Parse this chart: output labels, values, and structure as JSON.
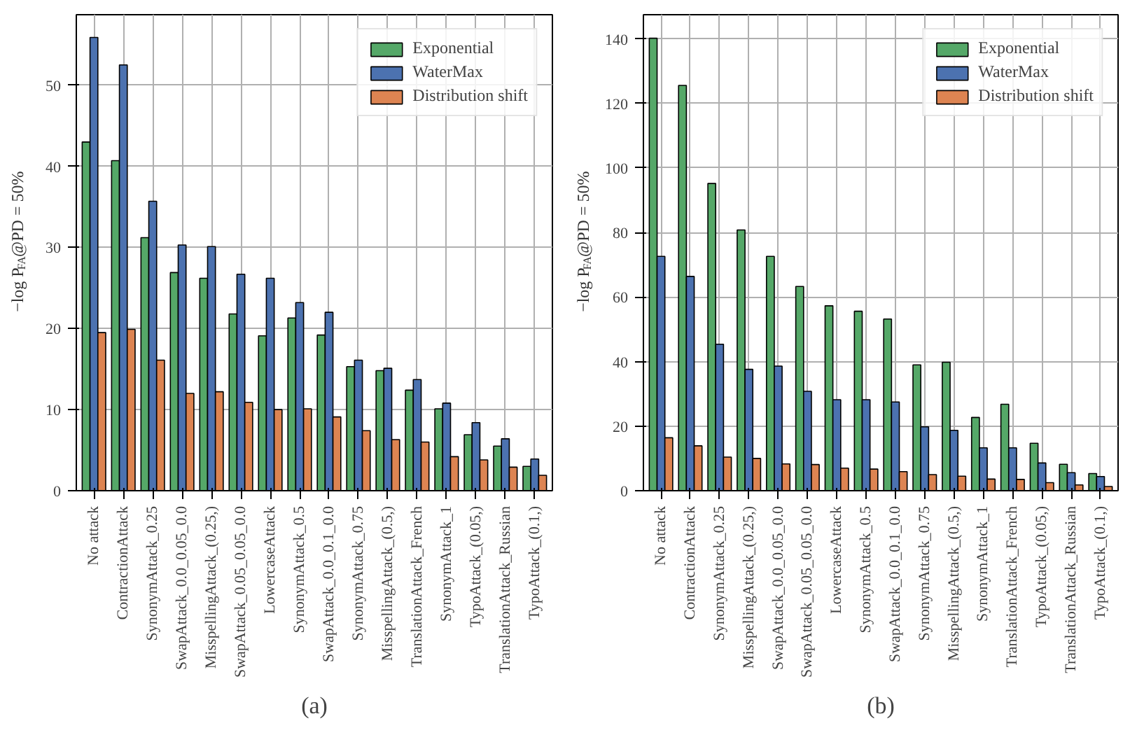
{
  "chart_data": [
    {
      "type": "bar",
      "annotations": [
        "(a)"
      ],
      "ylabel": "−log P$_{FA}$@PD = 50%",
      "categories": [
        "No attack",
        "ContractionAttack",
        "SynonymAttack_0.25",
        "SwapAttack_0.0_0.05_0.0",
        "MisspellingAttack_(0.25,)",
        "SwapAttack_0.05_0.05_0.0",
        "LowercaseAttack",
        "SynonymAttack_0.5",
        "SwapAttack_0.0_0.1_0.0",
        "SynonymAttack_0.75",
        "MisspellingAttack_(0.5,)",
        "TranslationAttack_French",
        "SynonymAttack_1",
        "TypoAttack_(0.05,)",
        "TranslationAttack_Russian",
        "TypoAttack_(0.1,)"
      ],
      "series": [
        {
          "name": "Exponential",
          "color": "#55a868",
          "values": [
            43,
            40.7,
            31.2,
            26.9,
            26.2,
            21.8,
            19.1,
            21.3,
            19.2,
            15.3,
            14.8,
            12.4,
            10.1,
            6.9,
            5.5,
            3.0
          ]
        },
        {
          "name": "WaterMax",
          "color": "#4c72b0",
          "values": [
            55.9,
            52.5,
            35.7,
            30.3,
            30.1,
            26.7,
            26.2,
            23.2,
            22.0,
            16.1,
            15.1,
            13.7,
            10.8,
            8.4,
            6.4,
            3.9
          ]
        },
        {
          "name": "Distribution shift",
          "color": "#dd8452",
          "values": [
            19.5,
            19.9,
            16.1,
            12.0,
            12.2,
            10.9,
            10.0,
            10.1,
            9.1,
            7.4,
            6.3,
            6.0,
            4.2,
            3.8,
            2.9,
            1.9
          ]
        }
      ],
      "ylim": [
        0,
        58.7
      ],
      "yticks": [
        0,
        10,
        20,
        30,
        40,
        50
      ],
      "grid": true,
      "legend": "top right"
    },
    {
      "type": "bar",
      "annotations": [
        "(b)"
      ],
      "ylabel": "−log P$_{FA}$@PD = 50%",
      "categories": [
        "No attack",
        "ContractionAttack",
        "SynonymAttack_0.25",
        "MisspellingAttack_(0.25,)",
        "SwapAttack_0.0_0.05_0.0",
        "SwapAttack_0.05_0.05_0.0",
        "LowercaseAttack",
        "SynonymAttack_0.5",
        "SwapAttack_0.0_0.1_0.0",
        "SynonymAttack_0.75",
        "MisspellingAttack_(0.5,)",
        "SynonymAttack_1",
        "TranslationAttack_French",
        "TypoAttack_(0.05,)",
        "TranslationAttack_Russian",
        "TypoAttack_(0.1,)"
      ],
      "series": [
        {
          "name": "Exponential",
          "color": "#55a868",
          "values": [
            140.2,
            125.6,
            95.2,
            80.8,
            72.6,
            63.3,
            57.3,
            55.6,
            53.2,
            39.0,
            39.8,
            22.7,
            26.8,
            14.7,
            8.2,
            5.3
          ]
        },
        {
          "name": "WaterMax",
          "color": "#4c72b0",
          "values": [
            72.6,
            66.4,
            45.4,
            37.6,
            38.6,
            30.8,
            28.2,
            28.2,
            27.5,
            19.8,
            18.7,
            13.3,
            13.3,
            8.6,
            5.6,
            4.4
          ]
        },
        {
          "name": "Distribution shift",
          "color": "#dd8452",
          "values": [
            16.4,
            13.9,
            10.4,
            10.0,
            8.3,
            8.1,
            7.0,
            6.7,
            5.9,
            5.0,
            4.5,
            3.6,
            3.5,
            2.5,
            1.8,
            1.3
          ]
        }
      ],
      "ylim": [
        0,
        147.5
      ],
      "yticks": [
        0,
        20,
        40,
        60,
        80,
        100,
        120,
        140
      ],
      "grid": true,
      "legend": "top right"
    }
  ]
}
